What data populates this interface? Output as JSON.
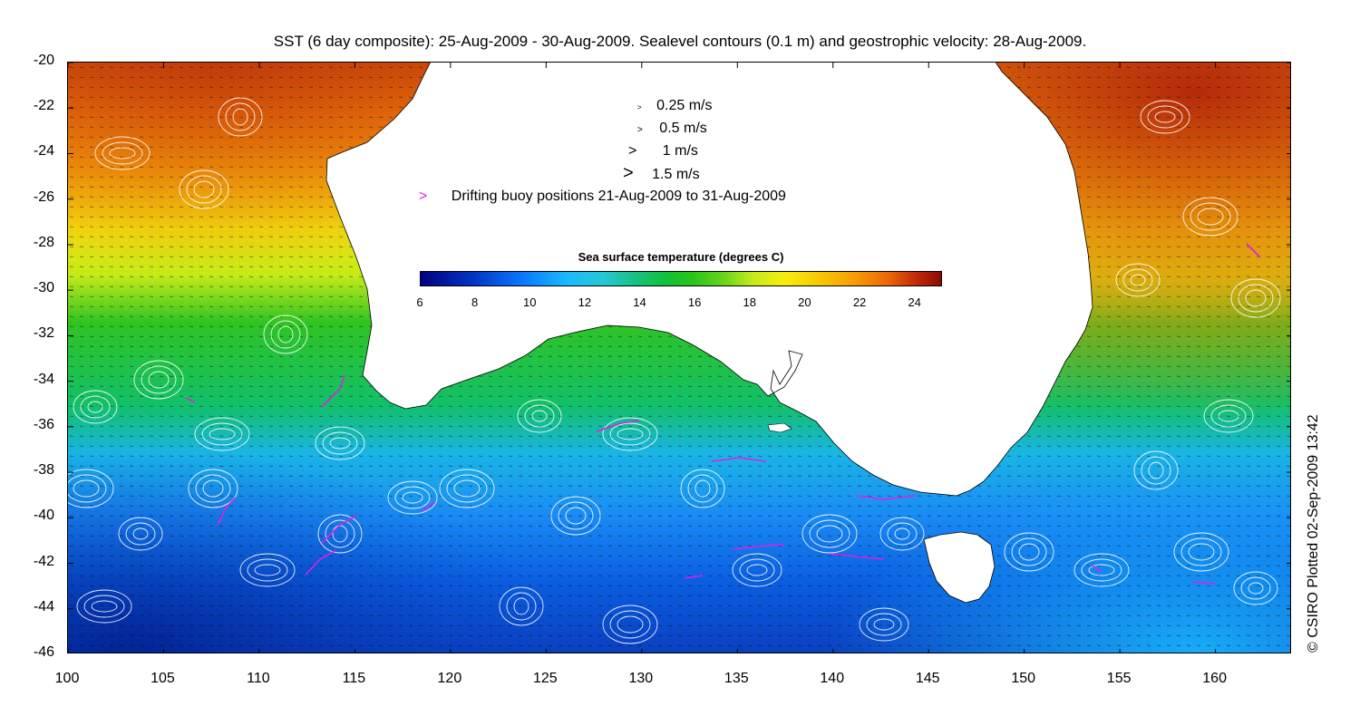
{
  "title": "SST (6 day composite): 25-Aug-2009 - 30-Aug-2009. Sealevel contours (0.1 m) and geostrophic velocity: 28-Aug-2009.",
  "axes": {
    "x_ticks": [
      "100",
      "105",
      "110",
      "115",
      "120",
      "125",
      "130",
      "135",
      "140",
      "145",
      "150",
      "155",
      "160"
    ],
    "y_ticks": [
      "-20",
      "-22",
      "-24",
      "-26",
      "-28",
      "-30",
      "-32",
      "-34",
      "-36",
      "-38",
      "-40",
      "-42",
      "-44",
      "-46"
    ],
    "x_range": [
      100,
      164
    ],
    "y_range": [
      -46,
      -20
    ]
  },
  "legend": {
    "velocity_scale": [
      {
        "label": "0.25 m/s",
        "speed": 0.25
      },
      {
        "label": "0.5 m/s",
        "speed": 0.5
      },
      {
        "label": "1 m/s",
        "speed": 1
      },
      {
        "label": "1.5 m/s",
        "speed": 1.5
      }
    ],
    "buoy_label": "Drifting buoy positions 21-Aug-2009 to 31-Aug-2009",
    "buoy_marker": ">",
    "buoy_color": "#e21de8"
  },
  "colorbar": {
    "title": "Sea surface temperature (degrees C)",
    "ticks": [
      "6",
      "8",
      "10",
      "12",
      "14",
      "16",
      "18",
      "20",
      "22",
      "24"
    ],
    "range": [
      6,
      25
    ]
  },
  "copyright": "© CSIRO Plotted 02-Sep-2009 13:42",
  "colors": {
    "land": "#ffffff",
    "contour": "#ffffff",
    "vector": "#000000",
    "buoy": "#e21de8"
  }
}
